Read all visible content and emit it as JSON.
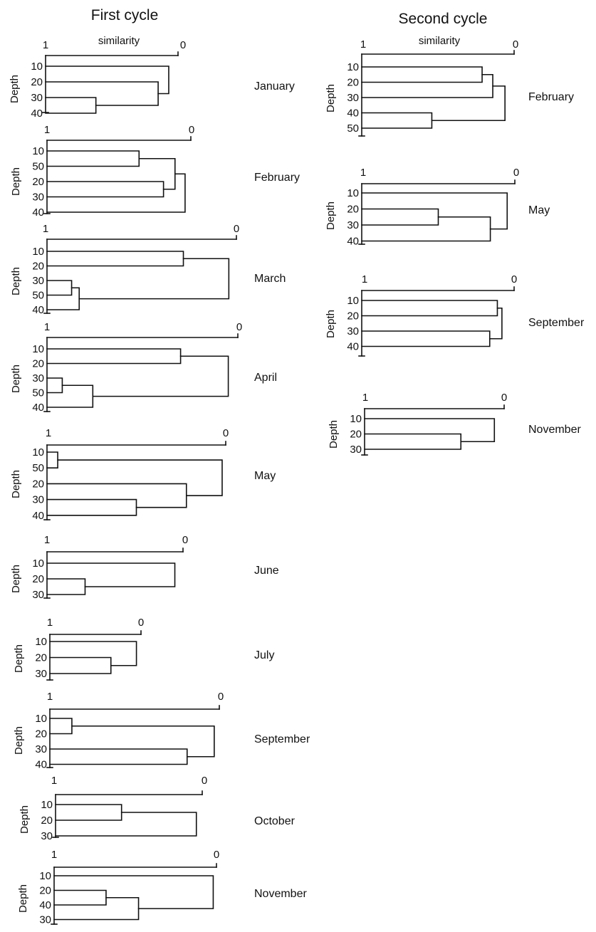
{
  "columns": [
    {
      "title": "First cycle",
      "similarity_label": "similarity",
      "axis_left_label": "1",
      "axis_right_label": "0",
      "depth_label": "Depth",
      "dendrograms": [
        {
          "month": "January",
          "leaves": [
            "10",
            "20",
            "30",
            "40"
          ],
          "merges": [
            {
              "a": 2,
              "b": 3,
              "sim": 0.62
            },
            {
              "a": 1,
              "b": 4,
              "sim": 0.15
            },
            {
              "a": 0,
              "b": 5,
              "sim": 0.07
            }
          ]
        },
        {
          "month": "February",
          "leaves": [
            "10",
            "50",
            "20",
            "30",
            "40"
          ],
          "merges": [
            {
              "a": 0,
              "b": 1,
              "sim": 0.36
            },
            {
              "a": 2,
              "b": 3,
              "sim": 0.19
            },
            {
              "a": 5,
              "b": 6,
              "sim": 0.11
            },
            {
              "a": 7,
              "b": 4,
              "sim": 0.04
            }
          ]
        },
        {
          "month": "March",
          "leaves": [
            "10",
            "20",
            "30",
            "50",
            "40"
          ],
          "merges": [
            {
              "a": 2,
              "b": 3,
              "sim": 0.87
            },
            {
              "a": 5,
              "b": 4,
              "sim": 0.83
            },
            {
              "a": 0,
              "b": 1,
              "sim": 0.28
            },
            {
              "a": 7,
              "b": 6,
              "sim": 0.04
            }
          ]
        },
        {
          "month": "April",
          "leaves": [
            "10",
            "20",
            "30",
            "50",
            "40"
          ],
          "merges": [
            {
              "a": 2,
              "b": 3,
              "sim": 0.92
            },
            {
              "a": 5,
              "b": 4,
              "sim": 0.76
            },
            {
              "a": 0,
              "b": 1,
              "sim": 0.3
            },
            {
              "a": 7,
              "b": 6,
              "sim": 0.05
            }
          ]
        },
        {
          "month": "May",
          "leaves": [
            "10",
            "50",
            "20",
            "30",
            "40"
          ],
          "merges": [
            {
              "a": 0,
              "b": 1,
              "sim": 0.94
            },
            {
              "a": 3,
              "b": 4,
              "sim": 0.5
            },
            {
              "a": 2,
              "b": 6,
              "sim": 0.22
            },
            {
              "a": 5,
              "b": 7,
              "sim": 0.02
            }
          ]
        },
        {
          "month": "June",
          "leaves": [
            "10",
            "20",
            "30"
          ],
          "merges": [
            {
              "a": 1,
              "b": 2,
              "sim": 0.72
            },
            {
              "a": 0,
              "b": 3,
              "sim": 0.06
            }
          ]
        },
        {
          "month": "July",
          "leaves": [
            "10",
            "20",
            "30"
          ],
          "merges": [
            {
              "a": 1,
              "b": 2,
              "sim": 0.33
            },
            {
              "a": 0,
              "b": 3,
              "sim": 0.05
            }
          ]
        },
        {
          "month": "September",
          "leaves": [
            "10",
            "20",
            "30",
            "40"
          ],
          "merges": [
            {
              "a": 0,
              "b": 1,
              "sim": 0.87
            },
            {
              "a": 2,
              "b": 3,
              "sim": 0.19
            },
            {
              "a": 4,
              "b": 5,
              "sim": 0.03
            }
          ]
        },
        {
          "month": "October",
          "leaves": [
            "10",
            "20",
            "30"
          ],
          "merges": [
            {
              "a": 0,
              "b": 1,
              "sim": 0.55
            },
            {
              "a": 3,
              "b": 2,
              "sim": 0.04
            }
          ]
        },
        {
          "month": "November",
          "leaves": [
            "10",
            "20",
            "40",
            "30"
          ],
          "merges": [
            {
              "a": 1,
              "b": 2,
              "sim": 0.68
            },
            {
              "a": 4,
              "b": 3,
              "sim": 0.48
            },
            {
              "a": 0,
              "b": 5,
              "sim": 0.02
            }
          ]
        }
      ]
    },
    {
      "title": "Second cycle",
      "similarity_label": "similarity",
      "axis_left_label": "1",
      "axis_right_label": "0",
      "depth_label": "Depth",
      "dendrograms": [
        {
          "month": "February",
          "leaves": [
            "10",
            "20",
            "30",
            "40",
            "50"
          ],
          "merges": [
            {
              "a": 0,
              "b": 1,
              "sim": 0.21
            },
            {
              "a": 5,
              "b": 2,
              "sim": 0.14
            },
            {
              "a": 3,
              "b": 4,
              "sim": 0.54
            },
            {
              "a": 6,
              "b": 7,
              "sim": 0.06
            }
          ]
        },
        {
          "month": "May",
          "leaves": [
            "10",
            "20",
            "30",
            "40"
          ],
          "merges": [
            {
              "a": 1,
              "b": 2,
              "sim": 0.5
            },
            {
              "a": 4,
              "b": 3,
              "sim": 0.16
            },
            {
              "a": 0,
              "b": 5,
              "sim": 0.05
            }
          ]
        },
        {
          "month": "September",
          "leaves": [
            "10",
            "20",
            "30",
            "40"
          ],
          "merges": [
            {
              "a": 0,
              "b": 1,
              "sim": 0.11
            },
            {
              "a": 2,
              "b": 3,
              "sim": 0.16
            },
            {
              "a": 4,
              "b": 5,
              "sim": 0.08
            }
          ]
        },
        {
          "month": "November",
          "leaves": [
            "10",
            "20",
            "30"
          ],
          "merges": [
            {
              "a": 1,
              "b": 2,
              "sim": 0.31
            },
            {
              "a": 0,
              "b": 3,
              "sim": 0.07
            }
          ]
        }
      ]
    }
  ]
}
